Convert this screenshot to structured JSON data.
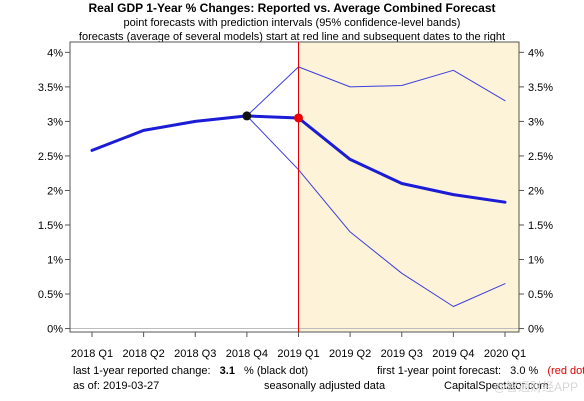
{
  "chart_data": {
    "type": "line",
    "title": "Real GDP 1-Year % Changes: Reported vs. Average Combined Forecast",
    "subtitle_lines": [
      "point forecasts with prediction intervals (95% confidence-level bands)",
      "forecasts (average of several models) start at red line and subsequent dates to the right"
    ],
    "categories": [
      "2018 Q1",
      "2018 Q2",
      "2018 Q3",
      "2018 Q4",
      "2019 Q1",
      "2019 Q2",
      "2019 Q3",
      "2019 Q4",
      "2020 Q1"
    ],
    "y_ticks": [
      "0%",
      "0.5%",
      "1%",
      "1.5%",
      "2%",
      "2.5%",
      "3%",
      "3.5%",
      "4%"
    ],
    "y_tick_values": [
      0,
      0.5,
      1,
      1.5,
      2,
      2.5,
      3,
      3.5,
      4
    ],
    "ylim": [
      -0.05,
      4.15
    ],
    "series": [
      {
        "values": [
          2.58,
          2.87,
          3.0,
          3.08,
          3.05,
          2.45,
          2.1,
          1.94,
          1.83
        ],
        "color": "#1c1cd6",
        "width": 3
      },
      {
        "values": [
          null,
          null,
          null,
          3.08,
          3.79,
          3.5,
          3.52,
          3.74,
          3.3
        ],
        "color": "#3d3de0",
        "width": 1
      },
      {
        "values": [
          null,
          null,
          null,
          3.08,
          2.3,
          1.4,
          0.8,
          0.32,
          0.65
        ],
        "color": "#3d3de0",
        "width": 1
      }
    ],
    "forecast_start_index": 4,
    "forecast_band_color": "#fcf3d8",
    "forecast_line_color": "#e00000",
    "black_dot": {
      "index": 3,
      "value": 3.08
    },
    "red_dot": {
      "index": 4,
      "value": 3.05
    },
    "grid": false
  },
  "footer": {
    "left_label": "last 1-year reported change:",
    "left_value": "3.1",
    "left_note": "% (black dot)",
    "right_label": "first 1-year point forecast:",
    "right_value": "3.0 %",
    "right_note": "(red dot)",
    "as_of": "as of: 2019-03-27",
    "seasonal": "seasonally adjusted data",
    "source": "CapitalSpectator.com"
  },
  "watermark": "@智通财经APP"
}
